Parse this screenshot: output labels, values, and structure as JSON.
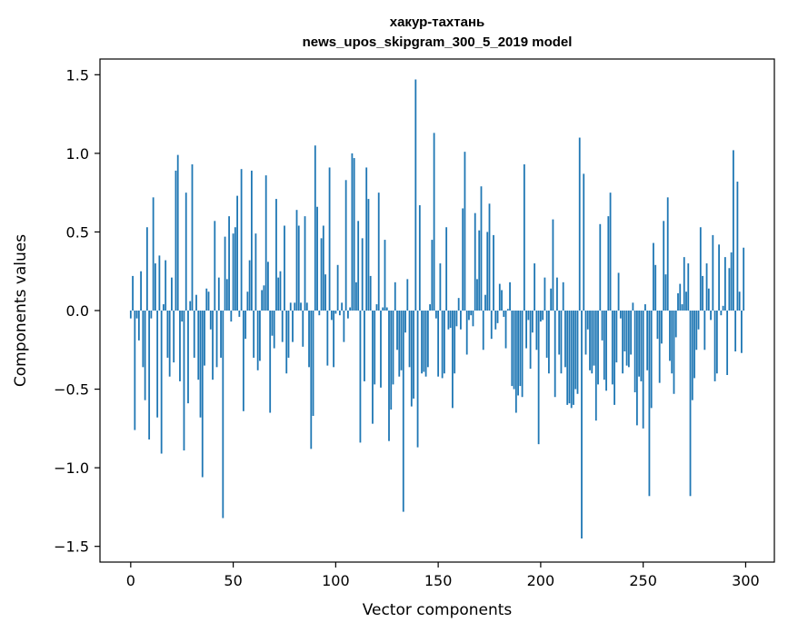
{
  "chart_data": {
    "type": "bar",
    "title_line1": "хакур-тахтань",
    "title_line2": "news_upos_skipgram_300_5_2019 model",
    "xlabel": "Vector components",
    "ylabel": "Components values",
    "xlim": [
      -15,
      314
    ],
    "ylim": [
      -1.6,
      1.6
    ],
    "xticks": [
      0,
      50,
      100,
      150,
      200,
      250,
      300
    ],
    "xtick_labels": [
      "0",
      "50",
      "100",
      "150",
      "200",
      "250",
      "300"
    ],
    "yticks": [
      -1.5,
      -1.0,
      -0.5,
      0.0,
      0.5,
      1.0,
      1.5
    ],
    "ytick_labels": [
      "−1.5",
      "−1.0",
      "−0.5",
      "0.0",
      "0.5",
      "1.0",
      "1.5"
    ],
    "grid": false,
    "bar_color": "#1f77b4",
    "values": [
      -0.05,
      0.22,
      -0.76,
      -0.05,
      -0.19,
      0.25,
      -0.36,
      -0.57,
      0.53,
      -0.82,
      -0.05,
      0.72,
      0.3,
      -0.68,
      0.35,
      -0.91,
      0.04,
      0.32,
      -0.3,
      -0.42,
      0.21,
      -0.33,
      0.89,
      0.99,
      -0.45,
      -0.07,
      -0.89,
      0.75,
      -0.59,
      0.06,
      0.93,
      -0.3,
      0.1,
      -0.44,
      -0.68,
      -1.06,
      -0.35,
      0.14,
      0.12,
      -0.12,
      -0.44,
      0.57,
      -0.36,
      0.21,
      -0.3,
      -1.32,
      0.47,
      0.2,
      0.6,
      -0.07,
      0.49,
      0.53,
      0.73,
      -0.04,
      0.9,
      -0.64,
      -0.18,
      0.12,
      0.32,
      0.89,
      -0.3,
      0.49,
      -0.38,
      -0.32,
      0.13,
      0.16,
      0.86,
      0.31,
      -0.65,
      -0.16,
      -0.24,
      0.71,
      0.21,
      0.25,
      -0.2,
      0.54,
      -0.4,
      -0.3,
      0.05,
      -0.2,
      0.05,
      0.64,
      0.54,
      0.05,
      -0.23,
      0.6,
      0.05,
      -0.36,
      -0.88,
      -0.67,
      1.05,
      0.66,
      -0.03,
      0.46,
      0.54,
      0.23,
      -0.35,
      0.91,
      -0.06,
      -0.36,
      -0.02,
      0.29,
      -0.03,
      0.05,
      -0.2,
      0.83,
      -0.05,
      0.02,
      1.0,
      0.97,
      0.18,
      0.57,
      -0.84,
      0.46,
      -0.45,
      0.91,
      0.71,
      0.22,
      -0.72,
      -0.47,
      0.04,
      0.75,
      -0.49,
      0.02,
      0.45,
      0.02,
      -0.83,
      -0.63,
      -0.47,
      0.18,
      -0.25,
      -0.42,
      -0.38,
      -1.28,
      -0.14,
      0.2,
      -0.36,
      -0.61,
      -0.56,
      1.47,
      -0.87,
      0.67,
      -0.4,
      -0.39,
      -0.42,
      -0.36,
      0.04,
      0.45,
      1.13,
      -0.05,
      -0.42,
      0.3,
      -0.43,
      -0.4,
      0.53,
      -0.12,
      -0.11,
      -0.62,
      -0.4,
      -0.1,
      0.08,
      -0.12,
      0.65,
      1.01,
      -0.28,
      -0.06,
      -0.03,
      -0.1,
      0.62,
      0.2,
      0.51,
      0.79,
      -0.25,
      0.1,
      0.5,
      0.68,
      -0.18,
      0.48,
      -0.12,
      -0.08,
      0.17,
      0.13,
      -0.04,
      -0.24,
      0.01,
      0.18,
      -0.48,
      -0.5,
      -0.65,
      -0.54,
      -0.48,
      -0.55,
      0.93,
      -0.24,
      -0.06,
      -0.37,
      -0.14,
      0.3,
      -0.25,
      -0.85,
      -0.07,
      -0.06,
      0.21,
      -0.3,
      -0.4,
      0.14,
      0.58,
      -0.55,
      0.21,
      -0.28,
      -0.4,
      0.18,
      -0.36,
      -0.6,
      -0.59,
      -0.62,
      -0.6,
      -0.5,
      -0.53,
      1.1,
      -1.45,
      0.87,
      -0.28,
      -0.12,
      -0.38,
      -0.4,
      -0.35,
      -0.7,
      -0.47,
      0.55,
      -0.19,
      -0.44,
      -0.51,
      0.6,
      0.75,
      -0.47,
      -0.6,
      -0.33,
      0.24,
      -0.05,
      -0.4,
      -0.26,
      -0.35,
      -0.36,
      -0.28,
      0.05,
      -0.52,
      -0.73,
      -0.42,
      -0.45,
      -0.75,
      0.04,
      -0.38,
      -1.18,
      -0.62,
      0.43,
      0.29,
      -0.18,
      -0.46,
      -0.21,
      0.57,
      0.23,
      0.72,
      -0.32,
      -0.4,
      -0.53,
      -0.17,
      0.11,
      0.17,
      0.04,
      0.34,
      0.12,
      0.3,
      -1.18,
      -0.57,
      -0.43,
      -0.25,
      -0.12,
      0.53,
      0.22,
      -0.25,
      0.3,
      0.14,
      -0.06,
      0.48,
      -0.45,
      -0.4,
      0.42,
      -0.03,
      0.03,
      0.34,
      -0.41,
      0.27,
      0.37,
      1.02,
      -0.26,
      0.82,
      0.12,
      -0.27,
      0.4
    ]
  }
}
